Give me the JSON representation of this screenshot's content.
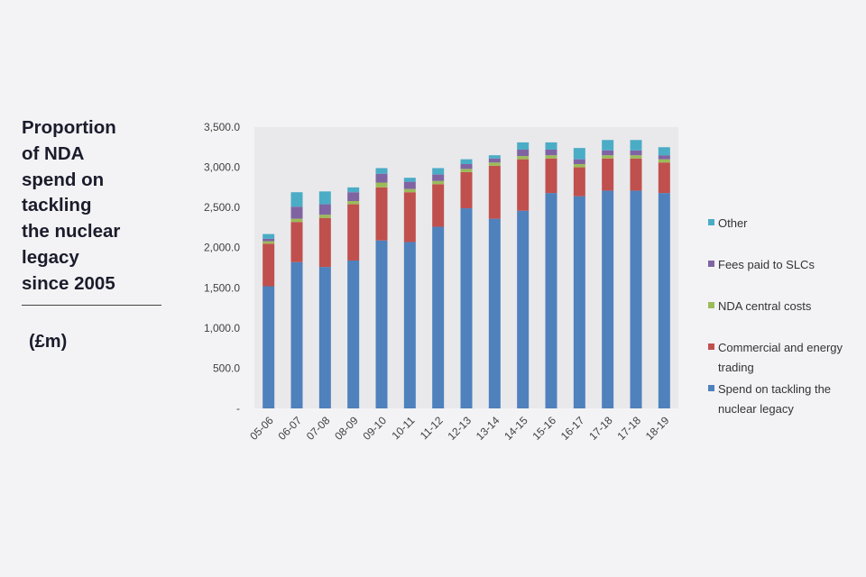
{
  "title": "Proportion\nof NDA\nspend on\ntackling\nthe nuclear\nlegacy\nsince 2005",
  "unit_label": "(£m)",
  "chart_data": {
    "type": "bar",
    "stacked": true,
    "categories": [
      "05-06",
      "06-07",
      "07-08",
      "08-09",
      "09-10",
      "10-11",
      "11-12",
      "12-13",
      "13-14",
      "14-15",
      "15-16",
      "16-17",
      "17-18",
      "17-18",
      "18-19"
    ],
    "ylim": [
      0,
      3500
    ],
    "yticks": [
      0,
      500,
      1000,
      1500,
      2000,
      2500,
      3000,
      3500
    ],
    "ytick_labels": [
      "-",
      "500.0",
      "1,000.0",
      "1,500.0",
      "2,000.0",
      "2,500.0",
      "3,000.0",
      "3,500.0"
    ],
    "xlabel": "",
    "ylabel": "",
    "grid": false,
    "legend_position": "right",
    "series": [
      {
        "name": "Spend on tackling the nuclear legacy",
        "color": "#4f81bd",
        "values": [
          1520,
          1820,
          1760,
          1840,
          2090,
          2070,
          2260,
          2490,
          2360,
          2460,
          2680,
          2640,
          2710,
          2710,
          2680
        ]
      },
      {
        "name": "Commercial and energy trading",
        "color": "#c0504d",
        "values": [
          530,
          500,
          610,
          700,
          660,
          620,
          530,
          450,
          660,
          640,
          430,
          360,
          400,
          400,
          380
        ]
      },
      {
        "name": "NDA central costs",
        "color": "#9bbb59",
        "values": [
          30,
          40,
          40,
          40,
          60,
          40,
          40,
          40,
          40,
          40,
          40,
          40,
          40,
          40,
          40
        ]
      },
      {
        "name": "Fees paid to SLCs",
        "color": "#8064a2",
        "values": [
          30,
          150,
          130,
          110,
          110,
          90,
          80,
          60,
          50,
          80,
          70,
          60,
          60,
          60,
          50
        ]
      },
      {
        "name": "Other",
        "color": "#4bacc6",
        "values": [
          60,
          180,
          160,
          60,
          70,
          50,
          80,
          60,
          40,
          90,
          90,
          140,
          130,
          130,
          100
        ]
      }
    ],
    "legend": [
      {
        "label": "Other",
        "color": "#4bacc6"
      },
      {
        "label": "Fees paid to SLCs",
        "color": "#8064a2"
      },
      {
        "label": "NDA central costs",
        "color": "#9bbb59"
      },
      {
        "label": "Commercial and energy\ntrading",
        "color": "#c0504d"
      },
      {
        "label": "Spend on tackling the\nnuclear legacy",
        "color": "#4f81bd"
      }
    ]
  }
}
